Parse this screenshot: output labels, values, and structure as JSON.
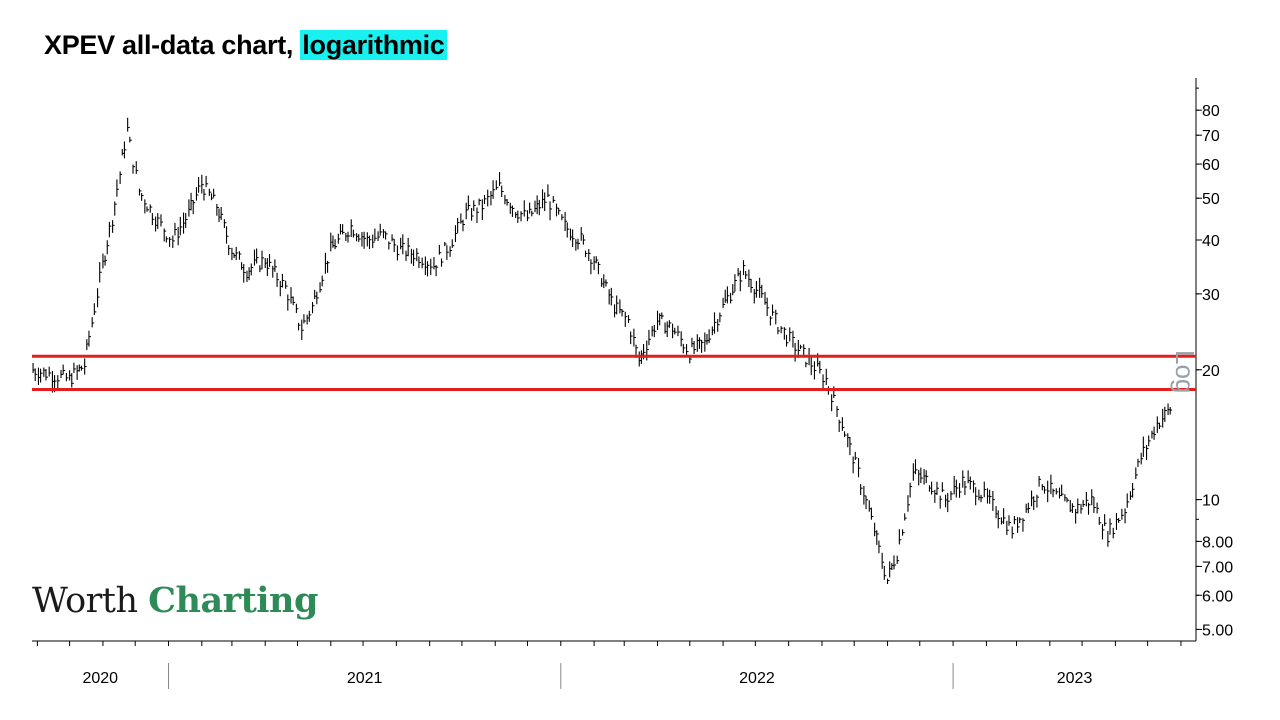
{
  "header": {
    "title_prefix": "XPEV all-data chart, ",
    "title_highlight": "logarithmic"
  },
  "logo": {
    "word1": "Worth",
    "word2": "Charting"
  },
  "scale_label": "Log",
  "colors": {
    "highlight": "#19f0f0",
    "lines": "#e0201c",
    "price": "#000000",
    "brand_green": "#2e8b57"
  },
  "chart_data": {
    "type": "line",
    "style": "ohlc-bars",
    "title": "XPEV all-data chart, logarithmic",
    "ylabel": "",
    "y_scale": "log",
    "ylim": [
      4.7,
      95
    ],
    "xlim": [
      "2020-08-27",
      "2023-08-15"
    ],
    "y_ticks": [
      "80",
      "70",
      "60",
      "50",
      "40",
      "30",
      "20",
      "10",
      "8.00",
      "7.00",
      "6.00",
      "5.00"
    ],
    "x_labels": [
      "2020",
      "2021",
      "2022",
      "2023"
    ],
    "horizontal_lines": [
      21.5,
      18.0
    ],
    "series": [
      {
        "x": [
          "2020-08-28",
          "2020-09-15",
          "2020-10-01",
          "2020-10-15",
          "2020-11-01",
          "2020-11-10",
          "2020-11-24",
          "2020-12-05",
          "2020-12-20",
          "2021-01-05",
          "2021-01-20",
          "2021-02-01",
          "2021-02-15",
          "2021-03-01",
          "2021-03-15",
          "2021-04-01",
          "2021-04-20",
          "2021-05-05",
          "2021-05-15",
          "2021-06-01",
          "2021-06-20",
          "2021-07-05",
          "2021-07-20",
          "2021-08-05",
          "2021-08-20",
          "2021-09-05",
          "2021-09-20",
          "2021-10-05",
          "2021-10-20",
          "2021-11-05",
          "2021-11-20",
          "2021-12-01",
          "2021-12-20",
          "2022-01-05",
          "2022-01-20",
          "2022-02-01",
          "2022-02-20",
          "2022-03-05",
          "2022-03-15",
          "2022-04-01",
          "2022-04-15",
          "2022-05-01",
          "2022-05-15",
          "2022-06-01",
          "2022-06-20",
          "2022-07-05",
          "2022-07-20",
          "2022-08-05",
          "2022-08-20",
          "2022-09-05",
          "2022-09-20",
          "2022-10-05",
          "2022-10-20",
          "2022-11-01",
          "2022-11-10",
          "2022-11-25",
          "2022-12-10",
          "2022-12-25",
          "2023-01-10",
          "2023-01-25",
          "2023-02-10",
          "2023-02-25",
          "2023-03-10",
          "2023-03-25",
          "2023-04-10",
          "2023-04-25",
          "2023-05-10",
          "2023-05-25",
          "2023-06-10",
          "2023-06-25",
          "2023-07-10",
          "2023-07-25"
        ],
        "values": [
          20.0,
          19.5,
          19.0,
          20.5,
          35.0,
          45.0,
          72.0,
          52.0,
          45.0,
          40.0,
          46.0,
          54.0,
          48.0,
          38.0,
          34.0,
          36.0,
          31.0,
          25.0,
          28.0,
          38.0,
          43.0,
          40.0,
          41.0,
          38.0,
          37.0,
          35.0,
          39.0,
          46.0,
          48.0,
          53.0,
          47.0,
          45.0,
          50.0,
          43.0,
          40.0,
          36.0,
          28.0,
          26.0,
          21.0,
          26.0,
          25.0,
          22.0,
          23.0,
          28.0,
          34.0,
          30.0,
          26.0,
          23.0,
          21.0,
          19.0,
          15.0,
          11.5,
          8.5,
          6.5,
          7.5,
          11.5,
          11.0,
          10.0,
          11.0,
          10.5,
          9.5,
          8.5,
          9.5,
          11.0,
          10.0,
          9.5,
          10.0,
          8.3,
          9.5,
          12.5,
          15.0,
          16.5
        ]
      }
    ]
  }
}
